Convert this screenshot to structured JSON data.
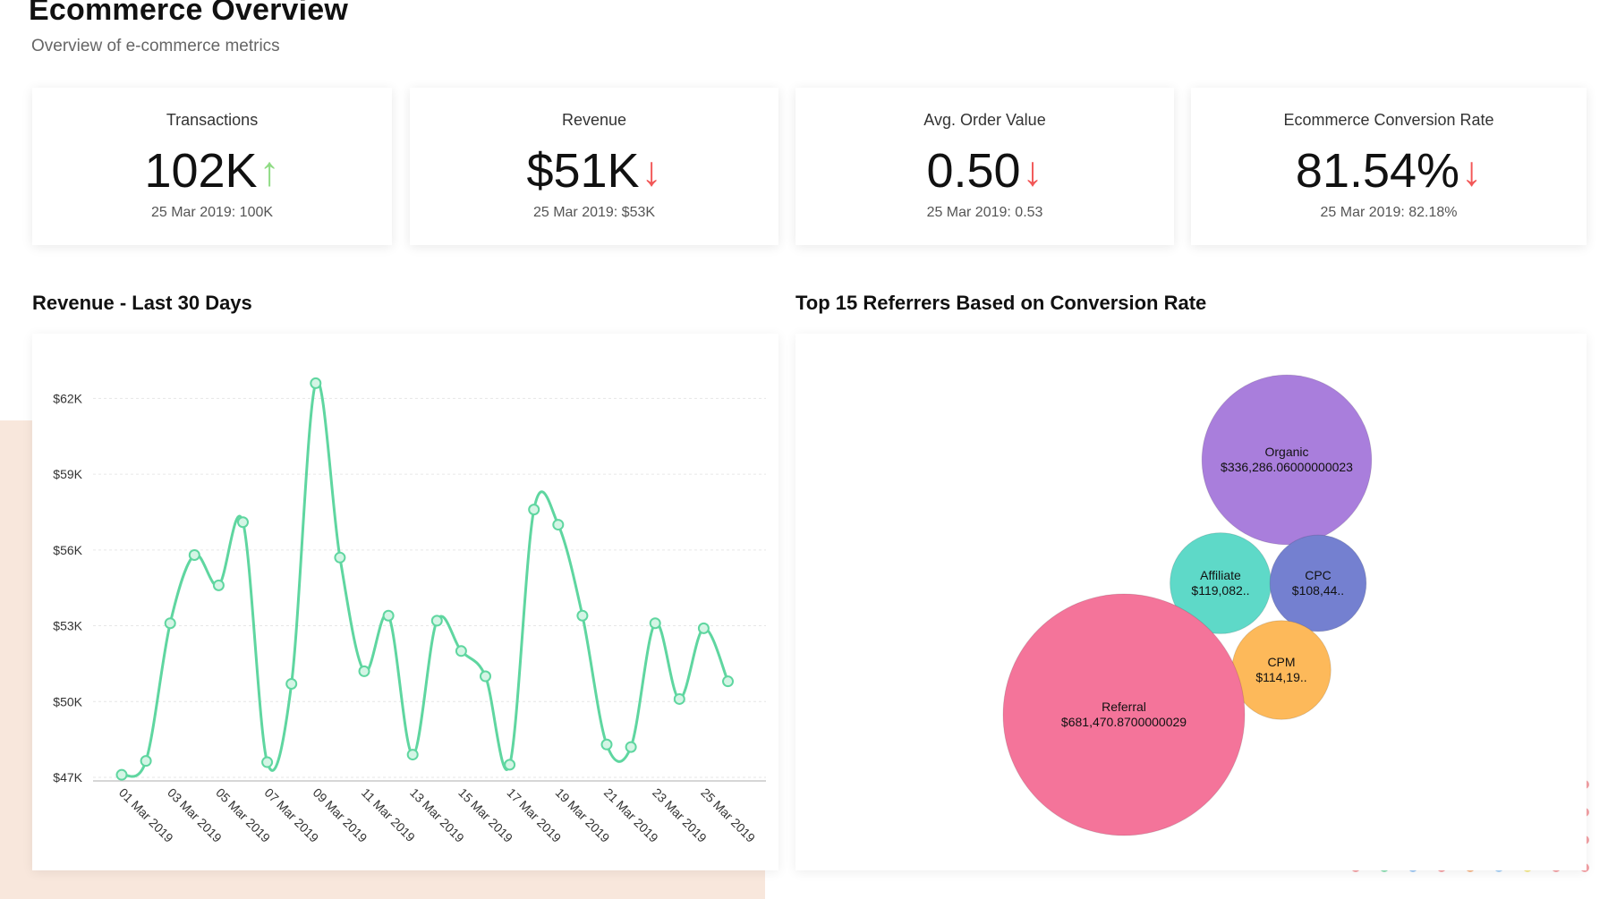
{
  "page": {
    "title": "Ecommerce Overview",
    "subtitle": "Overview of e-commerce metrics"
  },
  "kpis": [
    {
      "label": "Transactions",
      "value": "102K",
      "trend": "up",
      "arrow": "↑",
      "arrow_color": "#8fdb84",
      "compare": "25 Mar 2019: 100K"
    },
    {
      "label": "Revenue",
      "value": "$51K",
      "trend": "down",
      "arrow": "↓",
      "arrow_color": "#f25757",
      "compare": "25 Mar 2019: $53K"
    },
    {
      "label": "Avg. Order Value",
      "value": "0.50",
      "trend": "down",
      "arrow": "↓",
      "arrow_color": "#f25757",
      "compare": "25 Mar 2019: 0.53"
    },
    {
      "label": "Ecommerce Conversion Rate",
      "value": "81.54%",
      "trend": "down",
      "arrow": "↓",
      "arrow_color": "#f25757",
      "compare": "25 Mar 2019: 82.18%"
    }
  ],
  "chart_data": [
    {
      "type": "line",
      "title": "Revenue - Last 30 Days",
      "color": "#5fd6a0",
      "x": [
        "01 Mar 2019",
        "02 Mar 2019",
        "03 Mar 2019",
        "04 Mar 2019",
        "05 Mar 2019",
        "06 Mar 2019",
        "07 Mar 2019",
        "08 Mar 2019",
        "09 Mar 2019",
        "10 Mar 2019",
        "11 Mar 2019",
        "12 Mar 2019",
        "13 Mar 2019",
        "14 Mar 2019",
        "15 Mar 2019",
        "16 Mar 2019",
        "17 Mar 2019",
        "18 Mar 2019",
        "19 Mar 2019",
        "20 Mar 2019",
        "21 Mar 2019",
        "22 Mar 2019",
        "23 Mar 2019",
        "24 Mar 2019",
        "25 Mar 2019",
        "26 Mar 2019"
      ],
      "xtick_labels": [
        "01 Mar 2019",
        "03 Mar 2019",
        "05 Mar 2019",
        "07 Mar 2019",
        "09 Mar 2019",
        "11 Mar 2019",
        "13 Mar 2019",
        "15 Mar 2019",
        "17 Mar 2019",
        "19 Mar 2019",
        "21 Mar 2019",
        "23 Mar 2019",
        "25 Mar 2019"
      ],
      "values": [
        47100,
        47650,
        53100,
        55800,
        54600,
        57100,
        47600,
        50700,
        62600,
        55700,
        51200,
        53400,
        47900,
        53200,
        52000,
        51000,
        47500,
        57600,
        57000,
        53400,
        48300,
        48200,
        53100,
        50100,
        52900,
        50800
      ],
      "yticks": [
        47000,
        50000,
        53000,
        56000,
        59000,
        62000
      ],
      "ytick_labels": [
        "$47K",
        "$50K",
        "$53K",
        "$56K",
        "$59K",
        "$62K"
      ],
      "ylim": [
        47000,
        63500
      ],
      "grid": true,
      "legend": "none"
    },
    {
      "type": "bubble",
      "title": "Top 15 Referrers Based on Conversion Rate",
      "items": [
        {
          "name": "Organic",
          "value": 336286.06,
          "label": "$336,286.06000000023",
          "color": "#a97edc"
        },
        {
          "name": "Affiliate",
          "value": 119082,
          "label": "$119,082..",
          "color": "#5ed9c8"
        },
        {
          "name": "CPC",
          "value": 108440,
          "label": "$108,44..",
          "color": "#7480d0"
        },
        {
          "name": "CPM",
          "value": 114190,
          "label": "$114,19..",
          "color": "#fdb95a"
        },
        {
          "name": "Referral",
          "value": 681470.87,
          "label": "$681,470.8700000029",
          "color": "#f4749a"
        }
      ]
    }
  ]
}
